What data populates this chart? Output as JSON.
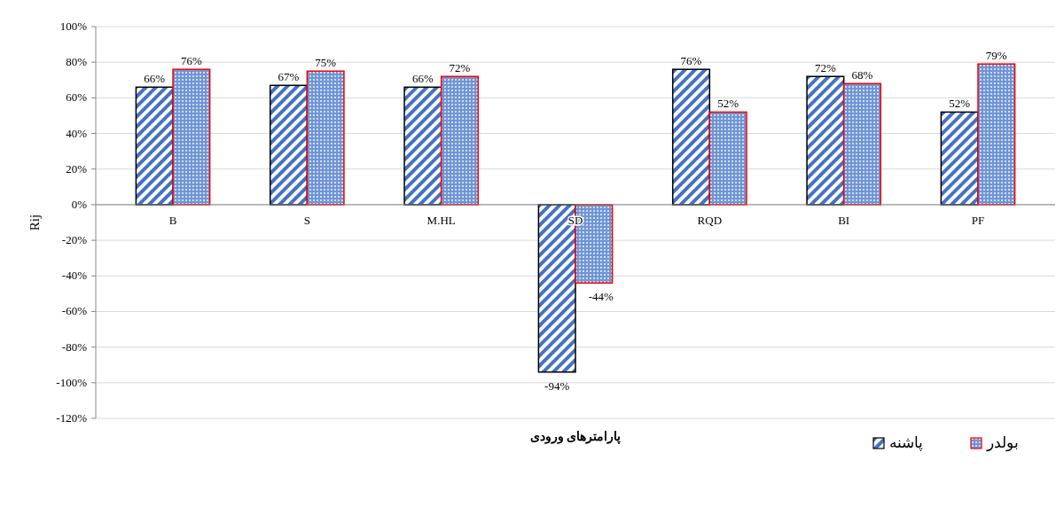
{
  "chart_data": {
    "type": "bar",
    "xlabel": "پارامترهای ورودی",
    "ylabel": "Rij",
    "categories": [
      "B",
      "S",
      "M.HL",
      "SD",
      "RQD",
      "BI",
      "PF"
    ],
    "series": [
      {
        "name": "پاشنه",
        "color": "#000000",
        "values": [
          66,
          67,
          66,
          -94,
          76,
          72,
          52
        ],
        "value_labels": [
          "66%",
          "67%",
          "66%",
          "-94%",
          "76%",
          "72%",
          "52%"
        ]
      },
      {
        "name": "بولدر",
        "color": "#ff0000",
        "values": [
          76,
          75,
          72,
          -44,
          52,
          68,
          79
        ],
        "value_labels": [
          "76%",
          "75%",
          "72%",
          "-44%",
          "52%",
          "68%",
          "79%"
        ]
      }
    ],
    "ylim": [
      -120,
      100
    ],
    "yticks": [
      {
        "value": -120,
        "label": "-120%"
      },
      {
        "value": -100,
        "label": "-100%"
      },
      {
        "value": -80,
        "label": "-80%"
      },
      {
        "value": -60,
        "label": "-60%"
      },
      {
        "value": -40,
        "label": "-40%"
      },
      {
        "value": -20,
        "label": "-20%"
      },
      {
        "value": 0,
        "label": "0%"
      },
      {
        "value": 20,
        "label": "20%"
      },
      {
        "value": 40,
        "label": "40%"
      },
      {
        "value": 60,
        "label": "60%"
      },
      {
        "value": 80,
        "label": "80%"
      },
      {
        "value": 100,
        "label": "100%"
      }
    ],
    "grid": "y",
    "legend": "bottom right"
  }
}
